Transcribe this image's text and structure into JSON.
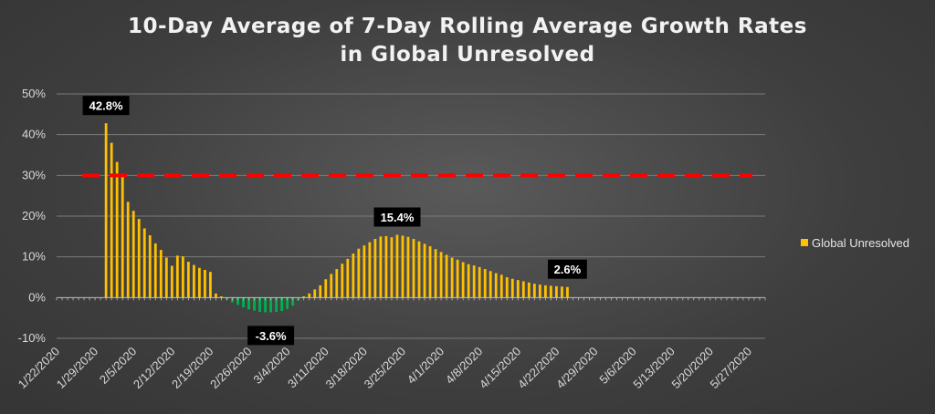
{
  "chart_data": {
    "type": "bar",
    "title_lines": [
      "10-Day Average of 7-Day Rolling Average Growth Rates",
      "in Global Unresolved"
    ],
    "xlabel": "",
    "ylabel": "",
    "ylim": [
      -10,
      50
    ],
    "yticks": [
      -10,
      0,
      10,
      20,
      30,
      40,
      50
    ],
    "ytick_labels": [
      "-10%",
      "0%",
      "10%",
      "20%",
      "30%",
      "40%",
      "50%"
    ],
    "x_start": "1/22/2020",
    "x_end": "5/30/2020",
    "xtick_labels": [
      "1/22/2020",
      "1/29/2020",
      "2/5/2020",
      "2/12/2020",
      "2/19/2020",
      "2/26/2020",
      "3/4/2020",
      "3/11/2020",
      "3/18/2020",
      "3/25/2020",
      "4/1/2020",
      "4/8/2020",
      "4/15/2020",
      "4/22/2020",
      "4/29/2020",
      "5/6/2020",
      "5/13/2020",
      "5/20/2020",
      "5/27/2020"
    ],
    "grid": true,
    "legend": "right",
    "threshold": {
      "value": 30,
      "color": "#ff0000",
      "style": "dashed"
    },
    "colors": {
      "positive": "#ffc000",
      "negative": "#00b050"
    },
    "series": [
      {
        "name": "Global Unresolved",
        "color": "#ffc000",
        "points": [
          [
            "1/31/2020",
            42.8
          ],
          [
            "2/1/2020",
            38.0
          ],
          [
            "2/2/2020",
            33.3
          ],
          [
            "2/3/2020",
            30.0
          ],
          [
            "2/4/2020",
            23.5
          ],
          [
            "2/5/2020",
            21.3
          ],
          [
            "2/6/2020",
            19.3
          ],
          [
            "2/7/2020",
            17.0
          ],
          [
            "2/8/2020",
            15.3
          ],
          [
            "2/9/2020",
            13.3
          ],
          [
            "2/10/2020",
            11.7
          ],
          [
            "2/11/2020",
            9.8
          ],
          [
            "2/12/2020",
            7.8
          ],
          [
            "2/13/2020",
            10.3
          ],
          [
            "2/14/2020",
            10.1
          ],
          [
            "2/15/2020",
            8.8
          ],
          [
            "2/16/2020",
            8.0
          ],
          [
            "2/17/2020",
            7.3
          ],
          [
            "2/18/2020",
            6.8
          ],
          [
            "2/19/2020",
            6.3
          ],
          [
            "2/20/2020",
            1.0
          ],
          [
            "2/21/2020",
            0.3
          ],
          [
            "2/22/2020",
            -0.5
          ],
          [
            "2/23/2020",
            -1.2
          ],
          [
            "2/24/2020",
            -1.8
          ],
          [
            "2/25/2020",
            -2.4
          ],
          [
            "2/26/2020",
            -2.9
          ],
          [
            "2/27/2020",
            -3.2
          ],
          [
            "2/28/2020",
            -3.5
          ],
          [
            "2/29/2020",
            -3.6
          ],
          [
            "3/1/2020",
            -3.6
          ],
          [
            "3/2/2020",
            -3.5
          ],
          [
            "3/3/2020",
            -3.3
          ],
          [
            "3/4/2020",
            -2.8
          ],
          [
            "3/5/2020",
            -2.0
          ],
          [
            "3/6/2020",
            -0.8
          ],
          [
            "3/7/2020",
            0.3
          ],
          [
            "3/8/2020",
            1.0
          ],
          [
            "3/9/2020",
            2.0
          ],
          [
            "3/10/2020",
            3.0
          ],
          [
            "3/11/2020",
            4.5
          ],
          [
            "3/12/2020",
            5.8
          ],
          [
            "3/13/2020",
            7.0
          ],
          [
            "3/14/2020",
            8.3
          ],
          [
            "3/15/2020",
            9.5
          ],
          [
            "3/16/2020",
            10.8
          ],
          [
            "3/17/2020",
            12.0
          ],
          [
            "3/18/2020",
            12.8
          ],
          [
            "3/19/2020",
            13.6
          ],
          [
            "3/20/2020",
            14.4
          ],
          [
            "3/21/2020",
            15.0
          ],
          [
            "3/22/2020",
            15.1
          ],
          [
            "3/23/2020",
            14.8
          ],
          [
            "3/24/2020",
            15.4
          ],
          [
            "3/25/2020",
            15.2
          ],
          [
            "3/26/2020",
            14.9
          ],
          [
            "3/27/2020",
            14.4
          ],
          [
            "3/28/2020",
            13.8
          ],
          [
            "3/29/2020",
            13.2
          ],
          [
            "3/30/2020",
            12.6
          ],
          [
            "3/31/2020",
            11.9
          ],
          [
            "4/1/2020",
            11.2
          ],
          [
            "4/2/2020",
            10.5
          ],
          [
            "4/3/2020",
            9.8
          ],
          [
            "4/4/2020",
            9.3
          ],
          [
            "4/5/2020",
            8.7
          ],
          [
            "4/6/2020",
            8.2
          ],
          [
            "4/7/2020",
            7.9
          ],
          [
            "4/8/2020",
            7.5
          ],
          [
            "4/9/2020",
            7.0
          ],
          [
            "4/10/2020",
            6.5
          ],
          [
            "4/11/2020",
            6.0
          ],
          [
            "4/12/2020",
            5.6
          ],
          [
            "4/13/2020",
            5.0
          ],
          [
            "4/14/2020",
            4.6
          ],
          [
            "4/15/2020",
            4.3
          ],
          [
            "4/16/2020",
            4.0
          ],
          [
            "4/17/2020",
            3.7
          ],
          [
            "4/18/2020",
            3.4
          ],
          [
            "4/19/2020",
            3.2
          ],
          [
            "4/20/2020",
            3.0
          ],
          [
            "4/21/2020",
            2.9
          ],
          [
            "4/22/2020",
            2.8
          ],
          [
            "4/23/2020",
            2.7
          ],
          [
            "4/24/2020",
            2.6
          ]
        ]
      }
    ],
    "annotations": [
      {
        "label": "42.8%",
        "x": "1/31/2020",
        "y": 42.8
      },
      {
        "label": "-3.6%",
        "x": "3/1/2020",
        "y": -3.6
      },
      {
        "label": "15.4%",
        "x": "3/24/2020",
        "y": 15.4
      },
      {
        "label": "2.6%",
        "x": "4/24/2020",
        "y": 2.6
      }
    ]
  }
}
